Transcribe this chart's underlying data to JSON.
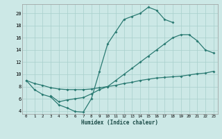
{
  "bg_color": "#cce8e6",
  "grid_color": "#a8cfcc",
  "line_color": "#2a7a72",
  "xlabel": "Humidex (Indice chaleur)",
  "xlim": [
    -0.5,
    23.5
  ],
  "ylim": [
    3.5,
    21.5
  ],
  "xtick_labels": [
    "0",
    "1",
    "2",
    "3",
    "4",
    "5",
    "6",
    "7",
    "8",
    "9",
    "10",
    "11",
    "12",
    "13",
    "14",
    "15",
    "16",
    "17",
    "18",
    "19",
    "20",
    "21",
    "22",
    "23"
  ],
  "ytick_vals": [
    4,
    6,
    8,
    10,
    12,
    14,
    16,
    18,
    20
  ],
  "curve_peak_x": [
    0,
    1,
    2,
    3,
    4,
    5,
    6,
    7,
    8,
    9,
    10,
    11,
    12,
    13,
    14,
    15,
    16,
    17,
    18
  ],
  "curve_peak_y": [
    9.0,
    7.5,
    6.7,
    6.3,
    5.0,
    4.5,
    3.9,
    3.8,
    6.0,
    10.5,
    15.0,
    17.0,
    19.0,
    19.5,
    20.0,
    21.0,
    20.5,
    19.0,
    18.5
  ],
  "curve_mid_x": [
    3,
    4,
    5,
    6,
    7,
    8,
    9,
    10,
    11,
    12,
    13,
    14,
    15,
    16,
    17,
    18,
    19,
    20,
    21,
    22,
    23
  ],
  "curve_mid_y": [
    6.5,
    5.5,
    5.8,
    6.0,
    6.2,
    6.8,
    7.5,
    8.0,
    9.0,
    10.0,
    11.0,
    12.0,
    13.0,
    14.0,
    15.0,
    16.0,
    16.5,
    16.5,
    15.5,
    14.0,
    13.5
  ],
  "curve_flat_x": [
    0,
    1,
    2,
    3,
    4,
    5,
    6,
    7,
    8,
    9,
    10,
    11,
    12,
    13,
    14,
    15,
    16,
    17,
    18,
    19,
    20,
    21,
    22,
    23
  ],
  "curve_flat_y": [
    9.0,
    8.5,
    8.2,
    7.8,
    7.6,
    7.5,
    7.5,
    7.5,
    7.6,
    7.8,
    8.0,
    8.2,
    8.5,
    8.7,
    9.0,
    9.2,
    9.4,
    9.5,
    9.6,
    9.7,
    9.9,
    10.1,
    10.2,
    10.5
  ]
}
